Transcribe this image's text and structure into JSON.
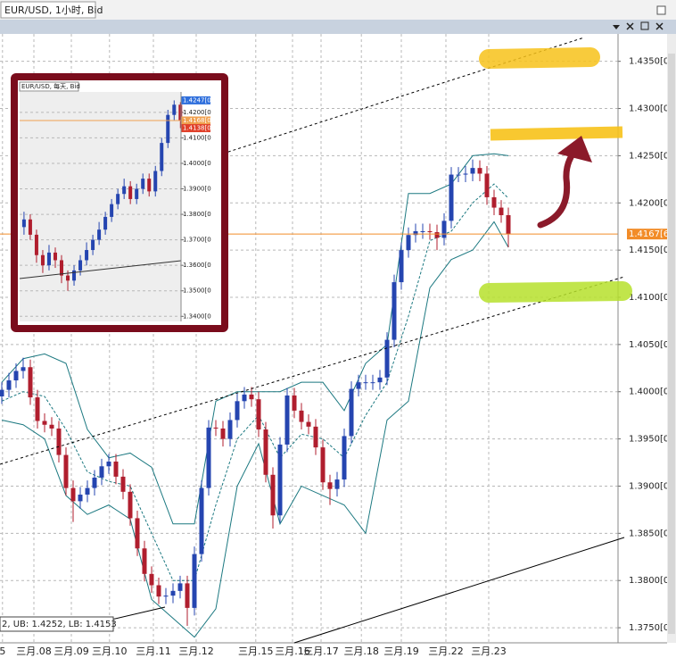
{
  "chart_data": [
    {
      "type": "candlestick",
      "title": "EUR/USD, 1小时, Bid",
      "annotation": "2, UB: 1.4252, LB: 1.4153",
      "up_color": "#2545b0",
      "down_color": "#b01e2e",
      "grid": true,
      "xlim": [
        -0.25,
        86.375
      ],
      "ylim": [
        1.3734,
        1.4379
      ],
      "xticks": [
        {
          "value": 0.1,
          "label": "5"
        },
        {
          "value": 4.5,
          "label": "三月.08"
        },
        {
          "value": 9.75,
          "label": "三月.09"
        },
        {
          "value": 15.1,
          "label": "三月.10"
        },
        {
          "value": 21.25,
          "label": "三月.11"
        },
        {
          "value": 27.25,
          "label": "三月.12"
        },
        {
          "value": 35.6,
          "label": "三月.15"
        },
        {
          "value": 40.75,
          "label": "三月.16"
        },
        {
          "value": 44.75,
          "label": "三月.17"
        },
        {
          "value": 50.4,
          "label": "三月.18"
        },
        {
          "value": 56,
          "label": "三月.19"
        },
        {
          "value": 62.25,
          "label": "三月.22"
        },
        {
          "value": 68.25,
          "label": "三月.23"
        }
      ],
      "yticks": [
        {
          "value": 1.435,
          "label": "1.4350[0]"
        },
        {
          "value": 1.43,
          "label": "1.4300[0]"
        },
        {
          "value": 1.425,
          "label": "1.4250[0]"
        },
        {
          "value": 1.42,
          "label": "1.4200[0]"
        },
        {
          "value": 1.415,
          "label": "1.4150[0]"
        },
        {
          "value": 1.41,
          "label": "1.4100[0]"
        },
        {
          "value": 1.405,
          "label": "1.4050[0]"
        },
        {
          "value": 1.4,
          "label": "1.4000[0]"
        },
        {
          "value": 1.395,
          "label": "1.3950[0]"
        },
        {
          "value": 1.39,
          "label": "1.3900[0]"
        },
        {
          "value": 1.385,
          "label": "1.3850[0]"
        },
        {
          "value": 1.38,
          "label": "1.3800[0]"
        },
        {
          "value": 1.375,
          "label": "1.3750[0]"
        }
      ],
      "open": [
        1.3995,
        1.4002,
        1.4012,
        1.4022,
        1.4026,
        1.3994,
        1.3969,
        1.3965,
        1.3961,
        1.3933,
        1.3898,
        1.3884,
        1.3891,
        1.3898,
        1.3909,
        1.3921,
        1.3926,
        1.391,
        1.3894,
        1.3866,
        1.3834,
        1.3807,
        1.3795,
        1.3783,
        1.3784,
        1.3789,
        1.3797,
        1.3771,
        1.3828,
        1.3898,
        1.3962,
        1.3961,
        1.395,
        1.397,
        1.399,
        1.3997,
        1.3992,
        1.396,
        1.3912,
        1.3869,
        1.3944,
        1.3996,
        1.398,
        1.3968,
        1.3963,
        1.3941,
        1.3904,
        1.3897,
        1.3907,
        1.3953,
        1.4003,
        1.401,
        1.401,
        1.401,
        1.4015,
        1.4055,
        1.4116,
        1.415,
        1.4166,
        1.417,
        1.417,
        1.4169,
        1.4163,
        1.4181,
        1.423,
        1.423,
        1.4231,
        1.4237,
        1.4231,
        1.4206,
        1.4195,
        1.4187
      ],
      "high": [
        1.401,
        1.402,
        1.403,
        1.4036,
        1.4034,
        1.4002,
        1.3977,
        1.3973,
        1.3969,
        1.3941,
        1.3906,
        1.3899,
        1.3906,
        1.3917,
        1.3929,
        1.3934,
        1.3934,
        1.3918,
        1.3902,
        1.3874,
        1.3842,
        1.3815,
        1.3803,
        1.3792,
        1.3797,
        1.3805,
        1.3805,
        1.3836,
        1.3906,
        1.397,
        1.397,
        1.3969,
        1.3978,
        1.3998,
        1.4005,
        1.4005,
        1.4,
        1.3968,
        1.392,
        1.3952,
        1.4004,
        1.4004,
        1.3988,
        1.3976,
        1.3971,
        1.3949,
        1.3912,
        1.3915,
        1.3961,
        1.4011,
        1.4018,
        1.4018,
        1.4018,
        1.4023,
        1.4063,
        1.4124,
        1.4158,
        1.4174,
        1.4178,
        1.4178,
        1.4178,
        1.4177,
        1.4189,
        1.4238,
        1.4238,
        1.4239,
        1.4246,
        1.4245,
        1.4239,
        1.4214,
        1.4203,
        1.4195
      ],
      "low": [
        1.3987,
        1.3994,
        1.4004,
        1.4014,
        1.3986,
        1.3961,
        1.3957,
        1.3953,
        1.3925,
        1.389,
        1.3862,
        1.3876,
        1.3883,
        1.389,
        1.3901,
        1.3913,
        1.3902,
        1.3886,
        1.3858,
        1.3826,
        1.3799,
        1.3787,
        1.3775,
        1.3775,
        1.3776,
        1.3781,
        1.3752,
        1.3763,
        1.382,
        1.389,
        1.3953,
        1.3942,
        1.3942,
        1.3962,
        1.3982,
        1.3984,
        1.3952,
        1.3904,
        1.3855,
        1.3861,
        1.3936,
        1.3972,
        1.396,
        1.3955,
        1.3933,
        1.3896,
        1.388,
        1.3889,
        1.3899,
        1.3945,
        1.3995,
        1.4002,
        1.4002,
        1.4002,
        1.4007,
        1.4047,
        1.4108,
        1.4142,
        1.4158,
        1.4162,
        1.4161,
        1.415,
        1.4155,
        1.4173,
        1.4222,
        1.4222,
        1.4223,
        1.4223,
        1.4198,
        1.4187,
        1.4179,
        1.4153
      ],
      "close": [
        1.4002,
        1.4012,
        1.4022,
        1.4026,
        1.3994,
        1.3969,
        1.3965,
        1.3961,
        1.3933,
        1.3898,
        1.3884,
        1.3891,
        1.3898,
        1.3909,
        1.3921,
        1.3926,
        1.391,
        1.3894,
        1.3866,
        1.3834,
        1.3807,
        1.3795,
        1.3783,
        1.3784,
        1.3789,
        1.3797,
        1.3771,
        1.3828,
        1.3898,
        1.3962,
        1.3961,
        1.395,
        1.397,
        1.399,
        1.3997,
        1.3992,
        1.396,
        1.3912,
        1.3869,
        1.3944,
        1.3996,
        1.398,
        1.3968,
        1.3963,
        1.3941,
        1.3904,
        1.3897,
        1.3907,
        1.3953,
        1.4003,
        1.401,
        1.401,
        1.401,
        1.4015,
        1.4055,
        1.4116,
        1.415,
        1.4166,
        1.417,
        1.417,
        1.4169,
        1.4163,
        1.4181,
        1.423,
        1.423,
        1.4231,
        1.4237,
        1.4231,
        1.4206,
        1.4195,
        1.4187,
        1.4167
      ],
      "bands": {
        "color": "#1b7880",
        "x": [
          0,
          3,
          6,
          9,
          12,
          15,
          18,
          21,
          24,
          27,
          30,
          33,
          36,
          39,
          42,
          45,
          48,
          51,
          54,
          57,
          60,
          63,
          66,
          69,
          71
        ],
        "upper": [
          1.401,
          1.4035,
          1.404,
          1.403,
          1.396,
          1.393,
          1.3935,
          1.392,
          1.386,
          1.386,
          1.399,
          1.4,
          1.4,
          1.4,
          1.401,
          1.401,
          1.398,
          1.403,
          1.405,
          1.421,
          1.421,
          1.422,
          1.425,
          1.4252,
          1.425
        ],
        "middle": [
          1.399,
          1.4,
          1.3995,
          1.396,
          1.3915,
          1.3905,
          1.39,
          1.385,
          1.38,
          1.38,
          1.388,
          1.395,
          1.3975,
          1.393,
          1.3955,
          1.395,
          1.393,
          1.3975,
          1.401,
          1.408,
          1.416,
          1.417,
          1.42,
          1.422,
          1.4205
        ],
        "lower": [
          1.397,
          1.3965,
          1.395,
          1.389,
          1.387,
          1.388,
          1.3865,
          1.378,
          1.376,
          1.374,
          1.377,
          1.39,
          1.3945,
          1.386,
          1.39,
          1.389,
          1.388,
          1.385,
          1.397,
          1.399,
          1.411,
          1.414,
          1.415,
          1.418,
          1.4153
        ]
      },
      "markers": [
        {
          "value": 1.4167,
          "label": "1.4167[6",
          "color": "#f28c28",
          "line": true
        }
      ]
    },
    {
      "type": "candlestick",
      "title": "EUR/USD, 每天, Bid",
      "up_color": "#2545b0",
      "down_color": "#b01e2e",
      "grid": true,
      "xlim": [
        -0.7,
        25.1
      ],
      "ylim": [
        1.338,
        1.428
      ],
      "yticks": [
        {
          "value": 1.42,
          "label": "1.4200[0"
        },
        {
          "value": 1.41,
          "label": "1.4100[0"
        },
        {
          "value": 1.4,
          "label": "1.4000[0"
        },
        {
          "value": 1.39,
          "label": "1.3900[0"
        },
        {
          "value": 1.38,
          "label": "1.3800[0"
        },
        {
          "value": 1.37,
          "label": "1.3700[0"
        },
        {
          "value": 1.36,
          "label": "1.3600[0"
        },
        {
          "value": 1.35,
          "label": "1.3500[0"
        },
        {
          "value": 1.34,
          "label": "1.3400[0"
        }
      ],
      "open": [
        1.375,
        1.378,
        1.372,
        1.364,
        1.36,
        1.365,
        1.362,
        1.356,
        1.354,
        1.358,
        1.362,
        1.366,
        1.37,
        1.374,
        1.379,
        1.384,
        1.388,
        1.391,
        1.386,
        1.39,
        1.394,
        1.389,
        1.397,
        1.408,
        1.419,
        1.423
      ],
      "high": [
        1.381,
        1.38,
        1.374,
        1.366,
        1.368,
        1.367,
        1.364,
        1.358,
        1.36,
        1.364,
        1.369,
        1.372,
        1.377,
        1.381,
        1.386,
        1.39,
        1.394,
        1.393,
        1.392,
        1.396,
        1.396,
        1.399,
        1.41,
        1.421,
        1.4247,
        1.424
      ],
      "low": [
        1.372,
        1.37,
        1.361,
        1.357,
        1.358,
        1.359,
        1.353,
        1.35,
        1.352,
        1.356,
        1.36,
        1.364,
        1.368,
        1.372,
        1.377,
        1.382,
        1.386,
        1.384,
        1.384,
        1.388,
        1.387,
        1.387,
        1.395,
        1.406,
        1.417,
        1.4138
      ],
      "close": [
        1.378,
        1.372,
        1.364,
        1.36,
        1.365,
        1.362,
        1.356,
        1.354,
        1.358,
        1.362,
        1.366,
        1.37,
        1.374,
        1.379,
        1.384,
        1.388,
        1.391,
        1.386,
        1.39,
        1.394,
        1.389,
        1.397,
        1.408,
        1.419,
        1.423,
        1.4168
      ],
      "markers": [
        {
          "value": 1.4247,
          "label": "1.4247[0",
          "color": "#2f6fdc",
          "line": false
        },
        {
          "value": 1.4168,
          "label": "1.4168[0",
          "color": "#f0a050",
          "line": true
        },
        {
          "value": 1.4138,
          "label": "1.4138[0",
          "color": "#e0402a",
          "line": false
        }
      ]
    }
  ]
}
